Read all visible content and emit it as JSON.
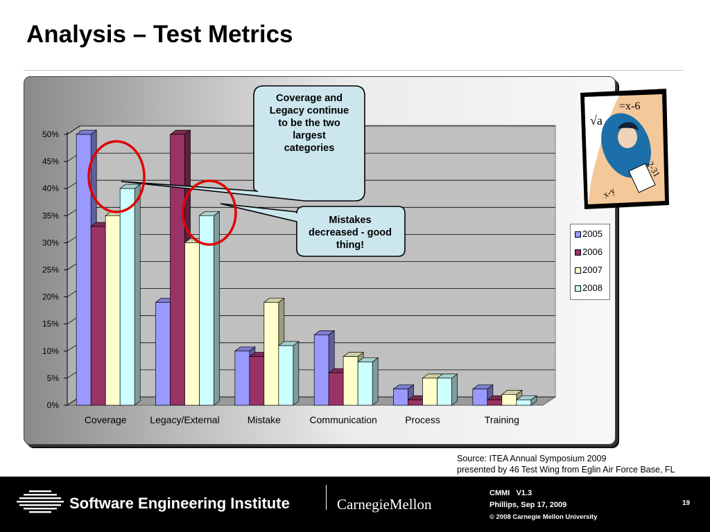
{
  "slide": {
    "title": "Analysis – Test Metrics",
    "source_line1": "Source: ITEA Annual Symposium 2009",
    "source_line2": "presented by 46 Test Wing from Eglin Air Force Base, FL"
  },
  "callouts": {
    "coverage_legacy": [
      "Coverage and",
      "Legacy continue",
      "to be the two",
      "largest",
      "categories"
    ],
    "mistakes": [
      "Mistakes",
      "decreased - good",
      "thing!"
    ]
  },
  "footer": {
    "org": "Software Engineering Institute",
    "university": "CarnegieMellon",
    "line1": "CMMI   V1.3",
    "line2": "Phillips, Sep 17, 2009",
    "line3": "© 2008 Carnegie Mellon University",
    "page": "19"
  },
  "colors": {
    "2005": "#9999ff",
    "2006": "#993366",
    "2007": "#ffffcc",
    "2008": "#ccffff",
    "highlight": "#e00000",
    "callout_fill": "#cce6ee"
  },
  "chart_data": {
    "type": "bar",
    "style": "3d-clustered",
    "categories": [
      "Coverage",
      "Legacy/External",
      "Mistake",
      "Communication",
      "Process",
      "Training"
    ],
    "series": [
      {
        "name": "2005",
        "values": [
          50,
          19,
          10,
          13,
          3,
          3
        ]
      },
      {
        "name": "2006",
        "values": [
          33,
          50,
          9,
          6,
          1,
          1
        ]
      },
      {
        "name": "2007",
        "values": [
          35,
          30,
          19,
          9,
          5,
          2
        ]
      },
      {
        "name": "2008",
        "values": [
          40,
          35,
          11,
          8,
          5,
          1
        ]
      }
    ],
    "y_ticks": [
      "0%",
      "5%",
      "10%",
      "15%",
      "20%",
      "25%",
      "30%",
      "35%",
      "40%",
      "45%",
      "50%"
    ],
    "ylim": [
      0,
      50
    ],
    "grid": true,
    "legend": "right",
    "highlighted": [
      "Coverage 2007-2008",
      "Legacy/External 2007-2008"
    ]
  }
}
